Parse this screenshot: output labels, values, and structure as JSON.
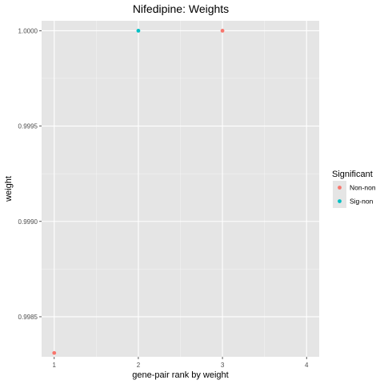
{
  "chart_data": {
    "type": "scatter",
    "title": "Nifedipine: Weights",
    "xlabel": "gene-pair rank by weight",
    "ylabel": "weight",
    "xlim": [
      0.85,
      4.15
    ],
    "ylim": [
      0.99829,
      1.000052
    ],
    "x_ticks": [
      1,
      2,
      3,
      4
    ],
    "x_tick_labels": [
      "1",
      "2",
      "3",
      "4"
    ],
    "y_ticks": [
      0.9985,
      0.999,
      0.9995,
      1.0
    ],
    "y_tick_labels": [
      "0.9985",
      "0.9990",
      "0.9995",
      "1.0000"
    ],
    "grid": true,
    "legend": {
      "title": "Significant",
      "position": "right",
      "entries": [
        {
          "label": "Non-non",
          "color": "#F8766D"
        },
        {
          "label": "Sig-non",
          "color": "#00BFC4"
        }
      ]
    },
    "points": [
      {
        "x": 1,
        "y": 0.99831,
        "group": "Non-non"
      },
      {
        "x": 2,
        "y": 1.0,
        "group": "Sig-non"
      },
      {
        "x": 3,
        "y": 1.0,
        "group": "Non-non"
      }
    ],
    "colors": {
      "panel_bg": "#E5E5E5",
      "grid_major": "#FFFFFF",
      "grid_minor": "#F2F2F2"
    }
  }
}
